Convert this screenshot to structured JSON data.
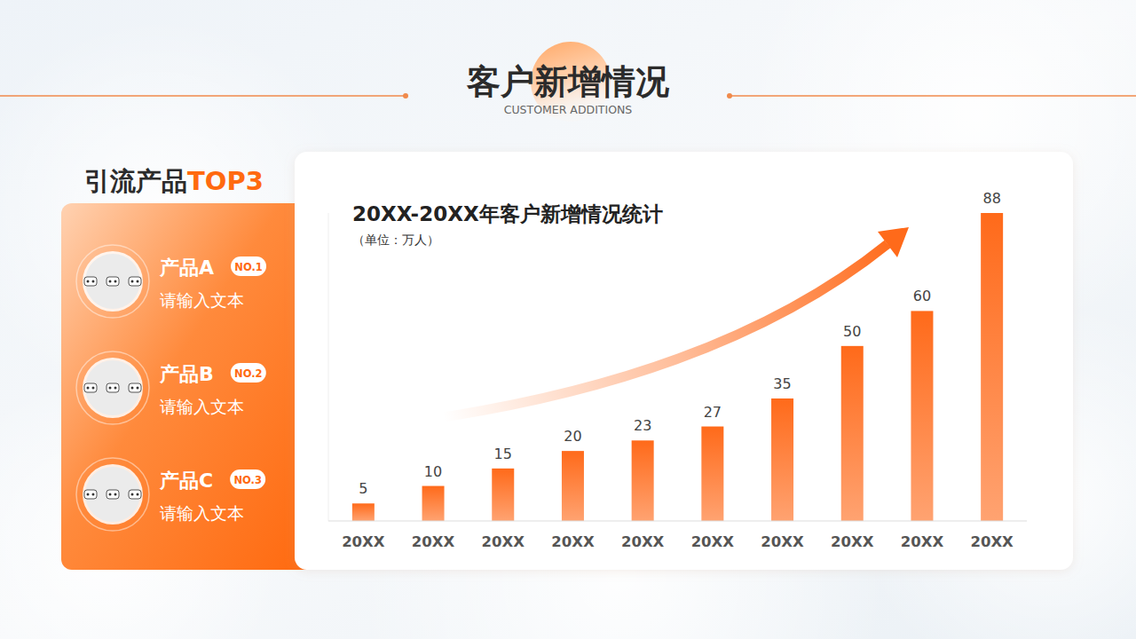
{
  "header": {
    "title": "客户新增情况",
    "subtitle": "CUSTOMER ADDITIONS"
  },
  "sidebar": {
    "heading": "引流产品",
    "heading_highlight": "TOP3",
    "products": [
      {
        "name": "产品A",
        "rank": "NO.1",
        "text": "请输入文本"
      },
      {
        "name": "产品B",
        "rank": "NO.2",
        "text": "请输入文本"
      },
      {
        "name": "产品C",
        "rank": "NO.3",
        "text": "请输入文本"
      }
    ]
  },
  "chart_data": {
    "type": "bar",
    "title": "20XX-20XX年客户新增情况统计",
    "subtitle": "（单位：万人）",
    "categories": [
      "20XX",
      "20XX",
      "20XX",
      "20XX",
      "20XX",
      "20XX",
      "20XX",
      "20XX",
      "20XX",
      "20XX"
    ],
    "values": [
      5,
      10,
      15,
      20,
      23,
      27,
      35,
      50,
      60,
      88
    ],
    "color": "#ff6a1a",
    "ylim": [
      0,
      88
    ],
    "grid": false,
    "data_labels": true,
    "tick_labels": "x"
  }
}
